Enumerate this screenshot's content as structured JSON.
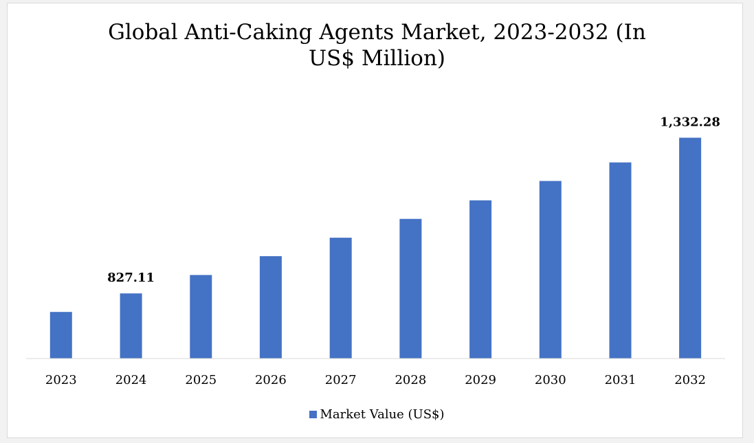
{
  "chart_data": {
    "type": "bar",
    "title_lines": [
      "Global Anti-Caking Agents Market, 2023-2032 (In",
      "US$ Million)"
    ],
    "categories": [
      "2023",
      "2024",
      "2025",
      "2026",
      "2027",
      "2028",
      "2029",
      "2030",
      "2031",
      "2032"
    ],
    "series": [
      {
        "name": "Market Value (US$)",
        "color": "#4472c4",
        "values": [
          767,
          827.11,
          887,
          948,
          1008,
          1069,
          1129,
          1192,
          1252,
          1332.28
        ]
      }
    ],
    "data_labels": [
      {
        "category": "2024",
        "text": "827.11"
      },
      {
        "category": "2032",
        "text": "1,332.28"
      }
    ],
    "ylim": [
      616,
      1398
    ],
    "grid": false,
    "legend_position": "bottom"
  }
}
